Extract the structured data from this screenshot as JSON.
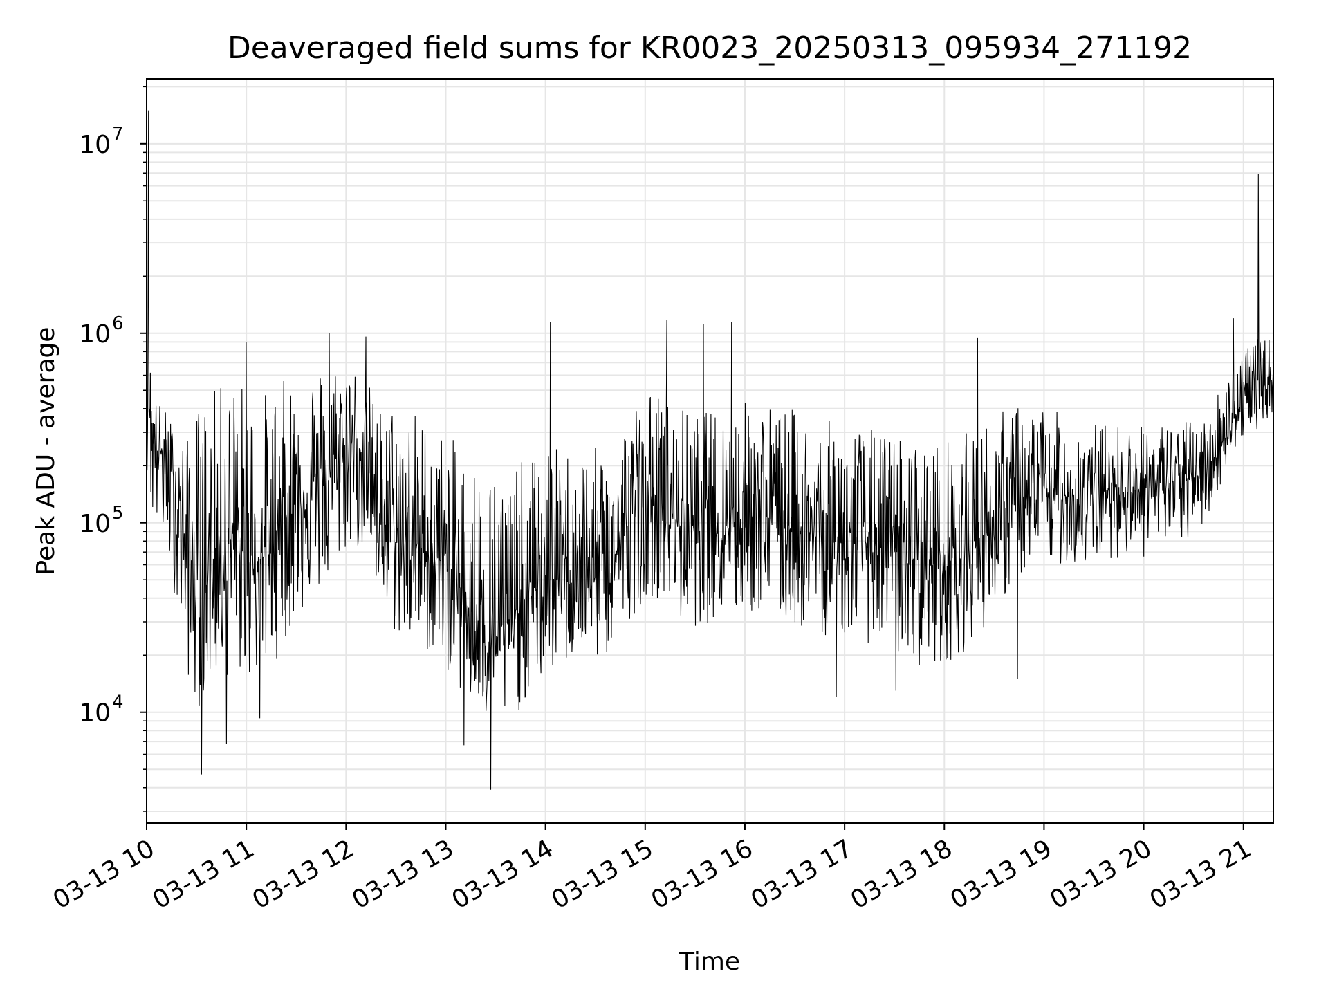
{
  "chart_data": {
    "type": "line",
    "title": "Deaveraged field sums for KR0023_20250313_095934_271192",
    "xlabel": "Time",
    "ylabel": "Peak ADU - average",
    "yscale": "log",
    "ylim": [
      2600,
      22000000
    ],
    "xlim": [
      "2025-03-13T10:00",
      "2025-03-13T21:18"
    ],
    "grid": true,
    "x_tick_values": [
      "2025-03-13T10:00",
      "2025-03-13T11:00",
      "2025-03-13T12:00",
      "2025-03-13T13:00",
      "2025-03-13T14:00",
      "2025-03-13T15:00",
      "2025-03-13T16:00",
      "2025-03-13T17:00",
      "2025-03-13T18:00",
      "2025-03-13T19:00",
      "2025-03-13T20:00",
      "2025-03-13T21:00"
    ],
    "x_tick_labels": [
      "03-13 10",
      "03-13 11",
      "03-13 12",
      "03-13 13",
      "03-13 14",
      "03-13 15",
      "03-13 16",
      "03-13 17",
      "03-13 18",
      "03-13 19",
      "03-13 20",
      "03-13 21"
    ],
    "y_tick_values": [
      10000,
      100000,
      1000000,
      10000000
    ],
    "y_tick_base": "10",
    "y_tick_exponents": [
      "4",
      "5",
      "6",
      "7"
    ],
    "line_color": "#000000",
    "series": [
      {
        "x": [
          "2025-03-13T10:00",
          "2025-03-13T10:03",
          "2025-03-13T10:06",
          "2025-03-13T10:10",
          "2025-03-13T10:15",
          "2025-03-13T10:20",
          "2025-03-13T10:25",
          "2025-03-13T10:30",
          "2025-03-13T10:35",
          "2025-03-13T10:40",
          "2025-03-13T10:45",
          "2025-03-13T10:50",
          "2025-03-13T10:55",
          "2025-03-13T11:00",
          "2025-03-13T11:10",
          "2025-03-13T11:20",
          "2025-03-13T11:30",
          "2025-03-13T11:40",
          "2025-03-13T11:50",
          "2025-03-13T12:00",
          "2025-03-13T12:10",
          "2025-03-13T12:20",
          "2025-03-13T12:30",
          "2025-03-13T12:40",
          "2025-03-13T12:50",
          "2025-03-13T13:00",
          "2025-03-13T13:10",
          "2025-03-13T13:20",
          "2025-03-13T13:30",
          "2025-03-13T13:40",
          "2025-03-13T13:50",
          "2025-03-13T14:00",
          "2025-03-13T14:10",
          "2025-03-13T14:20",
          "2025-03-13T14:30",
          "2025-03-13T14:40",
          "2025-03-13T14:50",
          "2025-03-13T15:00",
          "2025-03-13T15:10",
          "2025-03-13T15:20",
          "2025-03-13T15:30",
          "2025-03-13T15:40",
          "2025-03-13T15:50",
          "2025-03-13T16:00",
          "2025-03-13T16:10",
          "2025-03-13T16:20",
          "2025-03-13T16:30",
          "2025-03-13T16:40",
          "2025-03-13T16:50",
          "2025-03-13T17:00",
          "2025-03-13T17:10",
          "2025-03-13T17:20",
          "2025-03-13T17:30",
          "2025-03-13T17:40",
          "2025-03-13T17:50",
          "2025-03-13T18:00",
          "2025-03-13T18:10",
          "2025-03-13T18:20",
          "2025-03-13T18:30",
          "2025-03-13T18:40",
          "2025-03-13T18:50",
          "2025-03-13T19:00",
          "2025-03-13T19:10",
          "2025-03-13T19:20",
          "2025-03-13T19:30",
          "2025-03-13T19:40",
          "2025-03-13T19:50",
          "2025-03-13T20:00",
          "2025-03-13T20:10",
          "2025-03-13T20:20",
          "2025-03-13T20:30",
          "2025-03-13T20:40",
          "2025-03-13T20:50",
          "2025-03-13T21:00",
          "2025-03-13T21:05",
          "2025-03-13T21:10",
          "2025-03-13T21:15",
          "2025-03-13T21:18"
        ],
        "y": [
          700000,
          300000,
          250000,
          220000,
          170000,
          110000,
          65000,
          50000,
          50000,
          60000,
          70000,
          80000,
          70000,
          65000,
          65000,
          100000,
          130000,
          150000,
          170000,
          250000,
          250000,
          110000,
          80000,
          75000,
          70000,
          60000,
          40000,
          30000,
          25000,
          30000,
          40000,
          50000,
          50000,
          60000,
          55000,
          60000,
          100000,
          140000,
          130000,
          100000,
          95000,
          100000,
          100000,
          110000,
          115000,
          100000,
          95000,
          85000,
          80000,
          80000,
          80000,
          75000,
          70000,
          65000,
          60000,
          60000,
          65000,
          80000,
          100000,
          120000,
          130000,
          140000,
          140000,
          135000,
          140000,
          150000,
          150000,
          150000,
          160000,
          165000,
          170000,
          200000,
          300000,
          450000,
          500000,
          500000,
          550000,
          580000
        ],
        "upper": [
          1800000,
          600000,
          450000,
          420000,
          350000,
          300000,
          280000,
          420000,
          500000,
          500000,
          550000,
          600000,
          600000,
          550000,
          500000,
          550000,
          650000,
          700000,
          700000,
          800000,
          650000,
          420000,
          450000,
          420000,
          350000,
          300000,
          250000,
          220000,
          200000,
          200000,
          220000,
          260000,
          250000,
          260000,
          250000,
          280000,
          400000,
          500000,
          500000,
          420000,
          380000,
          400000,
          420000,
          450000,
          450000,
          420000,
          400000,
          360000,
          350000,
          340000,
          330000,
          310000,
          300000,
          280000,
          270000,
          280000,
          290000,
          330000,
          380000,
          420000,
          430000,
          420000,
          380000,
          350000,
          340000,
          340000,
          330000,
          330000,
          340000,
          340000,
          350000,
          380000,
          700000,
          900000,
          900000,
          950000,
          950000,
          900000
        ],
        "lower": [
          200000,
          100000,
          90000,
          80000,
          50000,
          30000,
          15000,
          10000,
          12000,
          15000,
          15000,
          15000,
          15000,
          15000,
          15000,
          20000,
          30000,
          40000,
          45000,
          70000,
          70000,
          35000,
          25000,
          22000,
          20000,
          17000,
          12000,
          9000,
          8000,
          9000,
          12000,
          15000,
          17000,
          20000,
          18000,
          20000,
          30000,
          40000,
          40000,
          30000,
          28000,
          30000,
          30000,
          32000,
          33000,
          30000,
          28000,
          26000,
          25000,
          25000,
          24000,
          22000,
          20000,
          18000,
          17000,
          18000,
          20000,
          25000,
          33000,
          45000,
          55000,
          60000,
          60000,
          58000,
          60000,
          65000,
          65000,
          65000,
          70000,
          75000,
          80000,
          110000,
          200000,
          280000,
          300000,
          320000,
          350000,
          380000
        ]
      }
    ],
    "spikes": [
      {
        "x": "2025-03-13T10:01",
        "y": 15000000
      },
      {
        "x": "2025-03-13T10:33",
        "y": 4700
      },
      {
        "x": "2025-03-13T10:48",
        "y": 6800
      },
      {
        "x": "2025-03-13T11:08",
        "y": 9300
      },
      {
        "x": "2025-03-13T11:00",
        "y": 900000
      },
      {
        "x": "2025-03-13T11:50",
        "y": 1000000
      },
      {
        "x": "2025-03-13T12:12",
        "y": 960000
      },
      {
        "x": "2025-03-13T13:11",
        "y": 6700
      },
      {
        "x": "2025-03-13T13:27",
        "y": 3900
      },
      {
        "x": "2025-03-13T14:03",
        "y": 1150000
      },
      {
        "x": "2025-03-13T15:13",
        "y": 1180000
      },
      {
        "x": "2025-03-13T15:35",
        "y": 1120000
      },
      {
        "x": "2025-03-13T15:52",
        "y": 1150000
      },
      {
        "x": "2025-03-13T16:55",
        "y": 12000
      },
      {
        "x": "2025-03-13T17:31",
        "y": 13000
      },
      {
        "x": "2025-03-13T18:20",
        "y": 950000
      },
      {
        "x": "2025-03-13T18:44",
        "y": 15000
      },
      {
        "x": "2025-03-13T20:54",
        "y": 1200000
      },
      {
        "x": "2025-03-13T21:09",
        "y": 6900000
      }
    ]
  }
}
